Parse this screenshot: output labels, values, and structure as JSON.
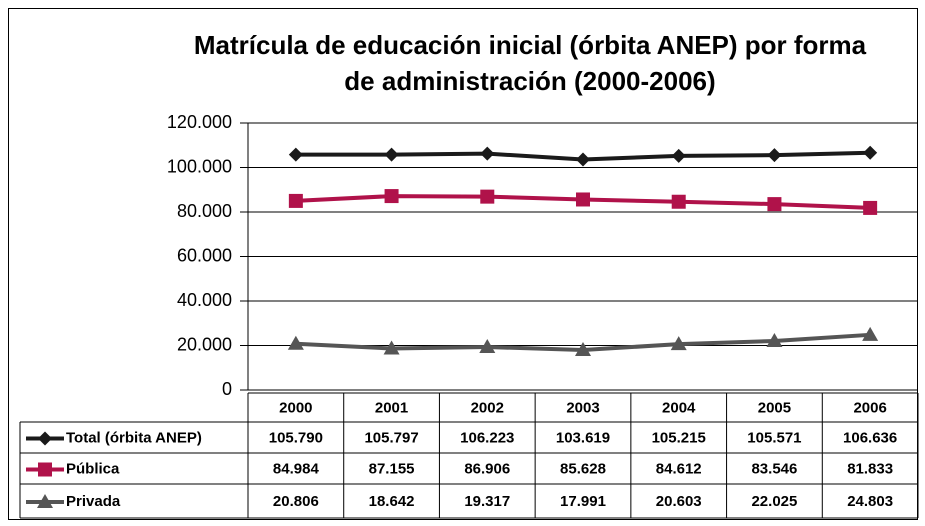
{
  "chart_data": {
    "type": "line",
    "title": "Matrícula de educación inicial (órbita ANEP) por forma",
    "subtitle": "de administración (2000-2006)",
    "categories": [
      "2000",
      "2001",
      "2002",
      "2003",
      "2004",
      "2005",
      "2006"
    ],
    "series": [
      {
        "name": "Total (órbita ANEP)",
        "color": "#1a1a1a",
        "marker": "diamond",
        "values": [
          105790,
          105797,
          106223,
          103619,
          105215,
          105571,
          106636
        ],
        "value_labels": [
          "105.790",
          "105.797",
          "106.223",
          "103.619",
          "105.215",
          "105.571",
          "106.636"
        ]
      },
      {
        "name": "Pública",
        "color": "#b0124a",
        "marker": "square",
        "values": [
          84984,
          87155,
          86906,
          85628,
          84612,
          83546,
          81833
        ],
        "value_labels": [
          "84.984",
          "87.155",
          "86.906",
          "85.628",
          "84.612",
          "83.546",
          "81.833"
        ]
      },
      {
        "name": "Privada",
        "color": "#555555",
        "marker": "triangle",
        "values": [
          20806,
          18642,
          19317,
          17991,
          20603,
          22025,
          24803
        ],
        "value_labels": [
          "20.806",
          "18.642",
          "19.317",
          "17.991",
          "20.603",
          "22.025",
          "24.803"
        ]
      }
    ],
    "ylim": [
      0,
      120000
    ],
    "yticks": [
      0,
      {
        "value": 20000,
        "label": "20.000"
      },
      {
        "value": 40000,
        "label": "40.000"
      },
      {
        "value": 60000,
        "label": "60.000"
      },
      {
        "value": 80000,
        "label": "80.000"
      },
      {
        "value": 100000,
        "label": "100.000"
      },
      {
        "value": 120000,
        "label": "120.000"
      }
    ],
    "grid": true
  }
}
